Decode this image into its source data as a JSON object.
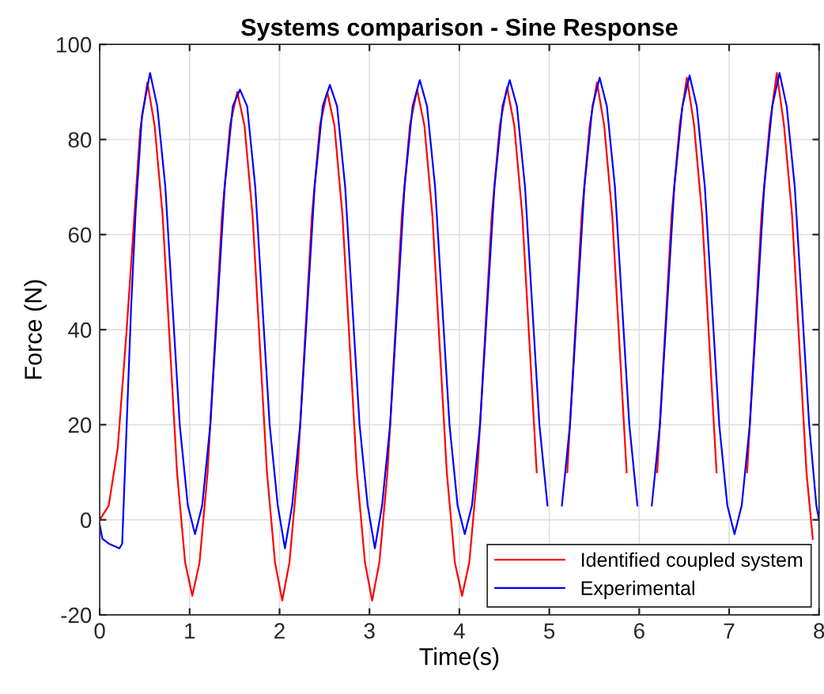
{
  "chart_data": {
    "type": "line",
    "title": "Systems comparison - Sine Response",
    "xlabel": "Time(s)",
    "ylabel": "Force (N)",
    "xlim": [
      0,
      8
    ],
    "xticks": [
      0,
      1,
      2,
      3,
      4,
      5,
      6,
      7,
      8
    ],
    "ylim": [
      -20,
      100
    ],
    "yticks": [
      -20,
      0,
      20,
      40,
      60,
      80,
      100
    ],
    "grid": true,
    "legend": "bottom right",
    "line_style": "solid",
    "marker": "none",
    "series": [
      {
        "name": "Identified coupled system",
        "color": "#ff0000",
        "x": [
          0,
          0.1,
          0.2,
          0.3,
          0.4,
          0.45,
          0.53,
          0.61,
          0.7,
          0.78,
          0.86,
          0.95,
          1.03,
          1.11,
          1.2,
          1.28,
          1.36,
          1.45,
          1.53,
          1.61,
          1.7,
          1.78,
          1.86,
          1.95,
          2.03,
          2.11,
          2.2,
          2.28,
          2.36,
          2.45,
          2.53,
          2.61,
          2.7,
          2.78,
          2.86,
          2.95,
          3.03,
          3.11,
          3.2,
          3.28,
          3.36,
          3.45,
          3.53,
          3.61,
          3.7,
          3.78,
          3.86,
          3.95,
          4.03,
          4.11,
          4.2,
          4.28,
          4.36,
          4.45,
          4.53,
          4.61,
          4.7,
          4.78,
          4.86,
          4.95,
          5.03,
          5.11,
          5.2,
          5.28,
          5.36,
          5.45,
          5.53,
          5.61,
          5.7,
          5.78,
          5.86,
          5.95,
          6.03,
          6.11,
          6.2,
          6.28,
          6.36,
          6.45,
          6.53,
          6.61,
          6.7,
          6.78,
          6.86,
          6.95,
          7.03,
          7.11,
          7.2,
          7.28,
          7.36,
          7.45,
          7.53,
          7.61,
          7.7,
          7.78,
          7.86,
          7.93
        ],
        "values": [
          0,
          3,
          15,
          40,
          68,
          82,
          92,
          83,
          64,
          37,
          10,
          -9,
          -16,
          -9,
          10,
          37,
          64,
          83,
          90,
          83,
          64,
          37,
          10,
          -9,
          -17,
          -9,
          10,
          37,
          64,
          83,
          90,
          83,
          64,
          37,
          10,
          -9,
          -17,
          -9,
          10,
          37,
          64,
          83,
          90.5,
          83,
          64,
          37,
          10,
          -9,
          -16,
          -9,
          10,
          37,
          64,
          83,
          91,
          83,
          64,
          37,
          10,
          null,
          null,
          null,
          10,
          37,
          64,
          83,
          92,
          83,
          64,
          37,
          10,
          null,
          null,
          null,
          10,
          37,
          64,
          83,
          93,
          83,
          64,
          37,
          10,
          null,
          null,
          null,
          10,
          37,
          64,
          83,
          94,
          83,
          64,
          37,
          10,
          -4
        ]
      },
      {
        "name": "Experimental",
        "color": "#0000ff",
        "x": [
          0,
          0.03,
          0.1,
          0.22,
          0.25,
          0.3,
          0.35,
          0.4,
          0.47,
          0.56,
          0.64,
          0.73,
          0.81,
          0.89,
          0.98,
          1.06,
          1.14,
          1.23,
          1.31,
          1.39,
          1.48,
          1.56,
          1.64,
          1.73,
          1.81,
          1.89,
          1.98,
          2.06,
          2.14,
          2.23,
          2.31,
          2.39,
          2.48,
          2.56,
          2.64,
          2.73,
          2.81,
          2.89,
          2.98,
          3.06,
          3.14,
          3.23,
          3.31,
          3.39,
          3.48,
          3.56,
          3.64,
          3.73,
          3.81,
          3.89,
          3.98,
          4.06,
          4.14,
          4.23,
          4.31,
          4.39,
          4.48,
          4.56,
          4.64,
          4.73,
          4.81,
          4.89,
          4.98,
          5.06,
          5.14,
          5.23,
          5.31,
          5.39,
          5.48,
          5.56,
          5.64,
          5.73,
          5.81,
          5.89,
          5.98,
          6.06,
          6.14,
          6.23,
          6.31,
          6.39,
          6.48,
          6.56,
          6.64,
          6.73,
          6.81,
          6.89,
          6.98,
          7.06,
          7.14,
          7.23,
          7.31,
          7.39,
          7.48,
          7.56,
          7.64,
          7.73,
          7.81,
          7.89,
          7.97,
          8.0
        ],
        "values": [
          -1,
          -4,
          -5,
          -6,
          -5,
          20,
          45,
          65,
          85,
          94,
          87,
          70,
          45,
          20,
          3,
          -3,
          3,
          20,
          45,
          70,
          87,
          90.5,
          87,
          70,
          45,
          20,
          3,
          -6,
          3,
          20,
          45,
          70,
          87,
          91.5,
          87,
          70,
          45,
          20,
          3,
          -6,
          3,
          20,
          45,
          70,
          87,
          92.5,
          87,
          70,
          45,
          20,
          3,
          -3,
          3,
          20,
          45,
          70,
          87,
          92.5,
          87,
          70,
          45,
          20,
          3,
          null,
          3,
          20,
          45,
          70,
          87,
          93,
          87,
          70,
          45,
          20,
          3,
          null,
          3,
          20,
          45,
          70,
          87,
          93.5,
          87,
          70,
          45,
          20,
          3,
          -3,
          3,
          20,
          45,
          70,
          87,
          94,
          87,
          70,
          45,
          20,
          3,
          0
        ]
      }
    ]
  }
}
